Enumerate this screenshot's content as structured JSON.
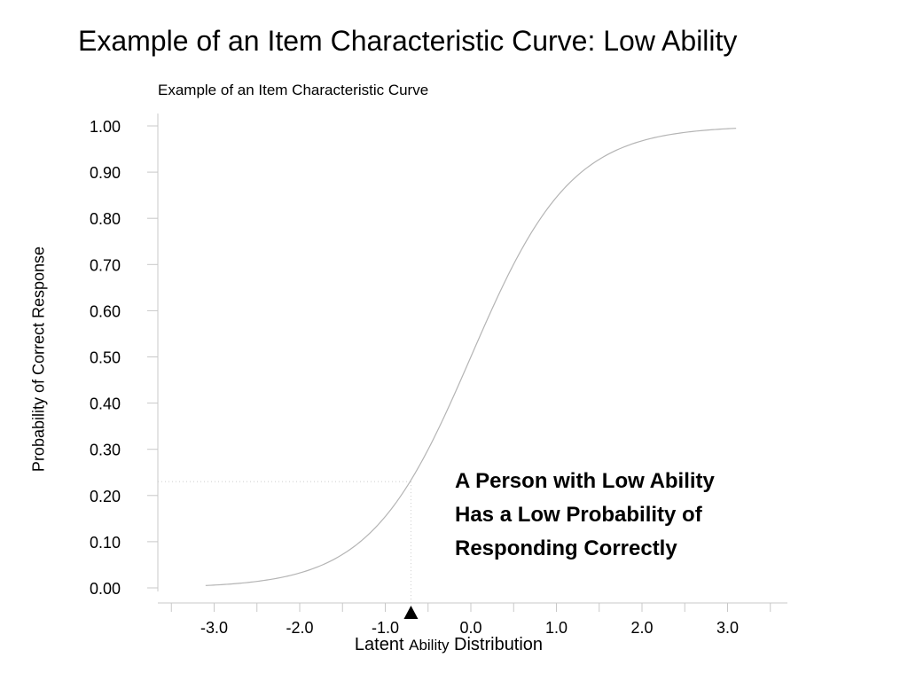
{
  "slide": {
    "title": "Example of an Item Characteristic Curve: Low Ability"
  },
  "callout": {
    "lines": [
      "A Person with Low Ability",
      "Has a Low Probability of",
      "Responding Correctly"
    ]
  },
  "chart_data": {
    "type": "line",
    "title": "Example of an Item Characteristic Curve",
    "xlabel": "Latent Ability Distribution",
    "xlabel_parts": [
      "Latent ",
      "Ability",
      " Distribution"
    ],
    "ylabel": "Probability of Correct Response",
    "xlim": [
      -3.5,
      3.6
    ],
    "ylim": [
      0,
      1
    ],
    "x_ticks": [
      -3.0,
      -2.0,
      -1.0,
      0.0,
      1.0,
      2.0,
      3.0
    ],
    "x_tick_labels": [
      "-3.0",
      "-2.0",
      "-1.0",
      "0.0",
      "1.0",
      "2.0",
      "3.0"
    ],
    "y_ticks": [
      0.0,
      0.1,
      0.2,
      0.3,
      0.4,
      0.5,
      0.6,
      0.7,
      0.8,
      0.9,
      1.0
    ],
    "y_tick_labels": [
      "0.00",
      "0.10",
      "0.20",
      "0.30",
      "0.40",
      "0.50",
      "0.60",
      "0.70",
      "0.80",
      "0.90",
      "1.00"
    ],
    "grid": false,
    "series": [
      {
        "x": [
          -3.1,
          -2.5,
          -2.0,
          -1.5,
          -1.0,
          -0.7,
          -0.5,
          0.0,
          0.5,
          1.0,
          1.5,
          2.0,
          2.5,
          3.1
        ],
        "y": [
          0.001,
          0.007,
          0.027,
          0.075,
          0.18,
          0.23,
          0.29,
          0.5,
          0.71,
          0.85,
          0.94,
          0.98,
          0.995,
          1.0
        ],
        "color": "#b4b4b4"
      }
    ],
    "marker": {
      "x": -0.7,
      "y": 0.23,
      "shape": "triangle-up"
    },
    "reference_lines": {
      "style": "dotted",
      "color": "#cccccc"
    }
  }
}
